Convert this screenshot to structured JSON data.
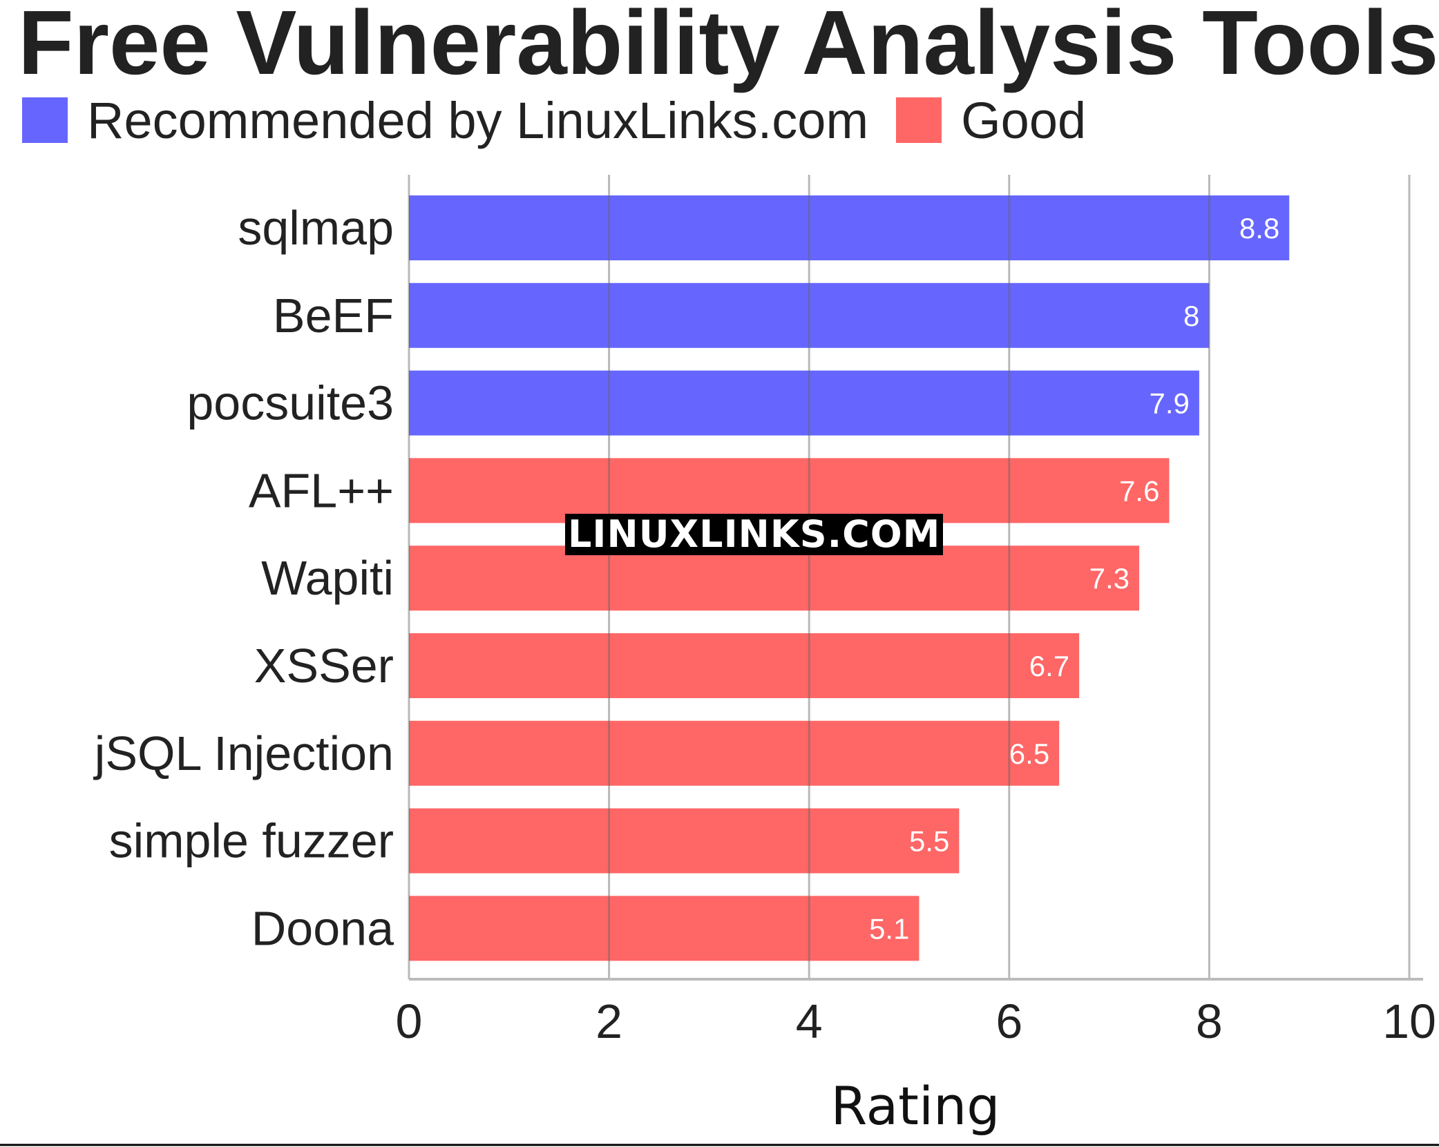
{
  "chart_data": {
    "type": "bar",
    "orientation": "horizontal",
    "title": "Free Vulnerability Analysis Tools",
    "categories": [
      "sqlmap",
      "BeEF",
      "pocsuite3",
      "AFL++",
      "Wapiti",
      "XSSer",
      "jSQL Injection",
      "simple fuzzer",
      "Doona"
    ],
    "values": [
      8.8,
      8,
      7.9,
      7.6,
      7.3,
      6.7,
      6.5,
      5.5,
      5.1
    ],
    "value_labels": [
      "8.8",
      "8",
      "7.9",
      "7.6",
      "7.3",
      "6.7",
      "6.5",
      "5.5",
      "5.1"
    ],
    "groups": [
      "Recommended by LinuxLinks.com",
      "Recommended by LinuxLinks.com",
      "Recommended by LinuxLinks.com",
      "Good",
      "Good",
      "Good",
      "Good",
      "Good",
      "Good"
    ],
    "legend": [
      {
        "name": "Recommended by LinuxLinks.com",
        "color": "#6666ff"
      },
      {
        "name": "Good",
        "color": "#ff6666"
      }
    ],
    "legend_position": "top-left",
    "xlabel": "Rating",
    "ylabel": "",
    "xlim": [
      0,
      10
    ],
    "xticks": [
      0,
      2,
      4,
      6,
      8,
      10
    ],
    "xtick_labels": [
      "0",
      "2",
      "4",
      "6",
      "8",
      "10"
    ],
    "grid": "vertical"
  },
  "watermark": "LINUXLINKS.COM"
}
